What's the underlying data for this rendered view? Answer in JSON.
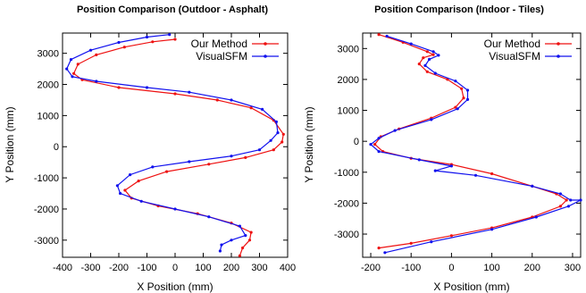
{
  "chart_data": [
    {
      "type": "line",
      "title": "Position Comparison (Outdoor - Asphalt)",
      "xlabel": "X Position (mm)",
      "ylabel": "Y Position (mm)",
      "xlim": [
        -400,
        400
      ],
      "ylim": [
        -3550,
        3650
      ],
      "xticks": [
        -400,
        -300,
        -200,
        -100,
        0,
        100,
        200,
        300,
        400
      ],
      "yticks": [
        -3000,
        -2000,
        -1000,
        0,
        1000,
        2000,
        3000
      ],
      "grid": false,
      "legend": "top-right",
      "series": [
        {
          "name": "Our Method",
          "color": "#ee1111",
          "points": [
            [
              0,
              3450
            ],
            [
              -80,
              3370
            ],
            [
              -180,
              3200
            ],
            [
              -280,
              2950
            ],
            [
              -345,
              2650
            ],
            [
              -360,
              2350
            ],
            [
              -330,
              2150
            ],
            [
              -200,
              1900
            ],
            [
              0,
              1700
            ],
            [
              150,
              1500
            ],
            [
              270,
              1250
            ],
            [
              350,
              850
            ],
            [
              385,
              400
            ],
            [
              380,
              150
            ],
            [
              350,
              -100
            ],
            [
              250,
              -350
            ],
            [
              120,
              -560
            ],
            [
              -30,
              -800
            ],
            [
              -130,
              -1100
            ],
            [
              -178,
              -1400
            ],
            [
              -155,
              -1650
            ],
            [
              -60,
              -1900
            ],
            [
              80,
              -2150
            ],
            [
              200,
              -2450
            ],
            [
              270,
              -2750
            ],
            [
              265,
              -3000
            ],
            [
              240,
              -3250
            ],
            [
              230,
              -3500
            ]
          ]
        },
        {
          "name": "VisualSFM",
          "color": "#1111ee",
          "points": [
            [
              -20,
              3600
            ],
            [
              -100,
              3520
            ],
            [
              -200,
              3350
            ],
            [
              -300,
              3100
            ],
            [
              -370,
              2800
            ],
            [
              -385,
              2500
            ],
            [
              -365,
              2250
            ],
            [
              -280,
              2100
            ],
            [
              -100,
              1900
            ],
            [
              50,
              1750
            ],
            [
              200,
              1500
            ],
            [
              310,
              1200
            ],
            [
              360,
              800
            ],
            [
              365,
              450
            ],
            [
              340,
              200
            ],
            [
              300,
              -100
            ],
            [
              200,
              -300
            ],
            [
              50,
              -480
            ],
            [
              -80,
              -650
            ],
            [
              -160,
              -900
            ],
            [
              -205,
              -1250
            ],
            [
              -195,
              -1500
            ],
            [
              -120,
              -1750
            ],
            [
              0,
              -2000
            ],
            [
              120,
              -2250
            ],
            [
              230,
              -2550
            ],
            [
              250,
              -2850
            ],
            [
              200,
              -3000
            ],
            [
              165,
              -3150
            ],
            [
              160,
              -3350
            ]
          ]
        }
      ]
    },
    {
      "type": "line",
      "title": "Position Comparison (Indoor - Tiles)",
      "xlabel": "X Position (mm)",
      "ylabel": "Y Position (mm)",
      "xlim": [
        -220,
        320
      ],
      "ylim": [
        -3750,
        3500
      ],
      "xticks": [
        -200,
        -100,
        0,
        100,
        200,
        300
      ],
      "yticks": [
        -3000,
        -2000,
        -1000,
        0,
        1000,
        2000,
        3000
      ],
      "grid": false,
      "legend": "top-right",
      "series": [
        {
          "name": "Our Method",
          "color": "#ee1111",
          "points": [
            [
              -180,
              3450
            ],
            [
              -120,
              3200
            ],
            [
              -60,
              2900
            ],
            [
              -45,
              2800
            ],
            [
              -70,
              2700
            ],
            [
              -80,
              2500
            ],
            [
              -60,
              2250
            ],
            [
              -10,
              2000
            ],
            [
              25,
              1700
            ],
            [
              30,
              1400
            ],
            [
              10,
              1100
            ],
            [
              -50,
              750
            ],
            [
              -130,
              400
            ],
            [
              -175,
              150
            ],
            [
              -190,
              -100
            ],
            [
              -170,
              -330
            ],
            [
              -100,
              -550
            ],
            [
              0,
              -750
            ],
            [
              100,
              -1050
            ],
            [
              200,
              -1450
            ],
            [
              260,
              -1700
            ],
            [
              285,
              -1900
            ],
            [
              270,
              -2100
            ],
            [
              200,
              -2450
            ],
            [
              100,
              -2800
            ],
            [
              0,
              -3050
            ],
            [
              -100,
              -3300
            ],
            [
              -180,
              -3450
            ]
          ]
        },
        {
          "name": "VisualSFM",
          "color": "#1111ee",
          "points": [
            [
              -160,
              3400
            ],
            [
              -100,
              3150
            ],
            [
              -45,
              2900
            ],
            [
              -32,
              2780
            ],
            [
              -55,
              2650
            ],
            [
              -65,
              2450
            ],
            [
              -40,
              2200
            ],
            [
              10,
              1950
            ],
            [
              40,
              1650
            ],
            [
              40,
              1350
            ],
            [
              15,
              1050
            ],
            [
              -50,
              700
            ],
            [
              -140,
              350
            ],
            [
              -180,
              100
            ],
            [
              -200,
              -100
            ],
            [
              -180,
              -330
            ],
            [
              -80,
              -600
            ],
            [
              0,
              -800
            ],
            [
              -40,
              -950
            ],
            [
              60,
              -1100
            ],
            [
              200,
              -1450
            ],
            [
              270,
              -1700
            ],
            [
              295,
              -1900
            ],
            [
              320,
              -1900
            ],
            [
              290,
              -2100
            ],
            [
              210,
              -2450
            ],
            [
              100,
              -2850
            ],
            [
              -50,
              -3250
            ],
            [
              -165,
              -3600
            ]
          ]
        }
      ]
    }
  ]
}
